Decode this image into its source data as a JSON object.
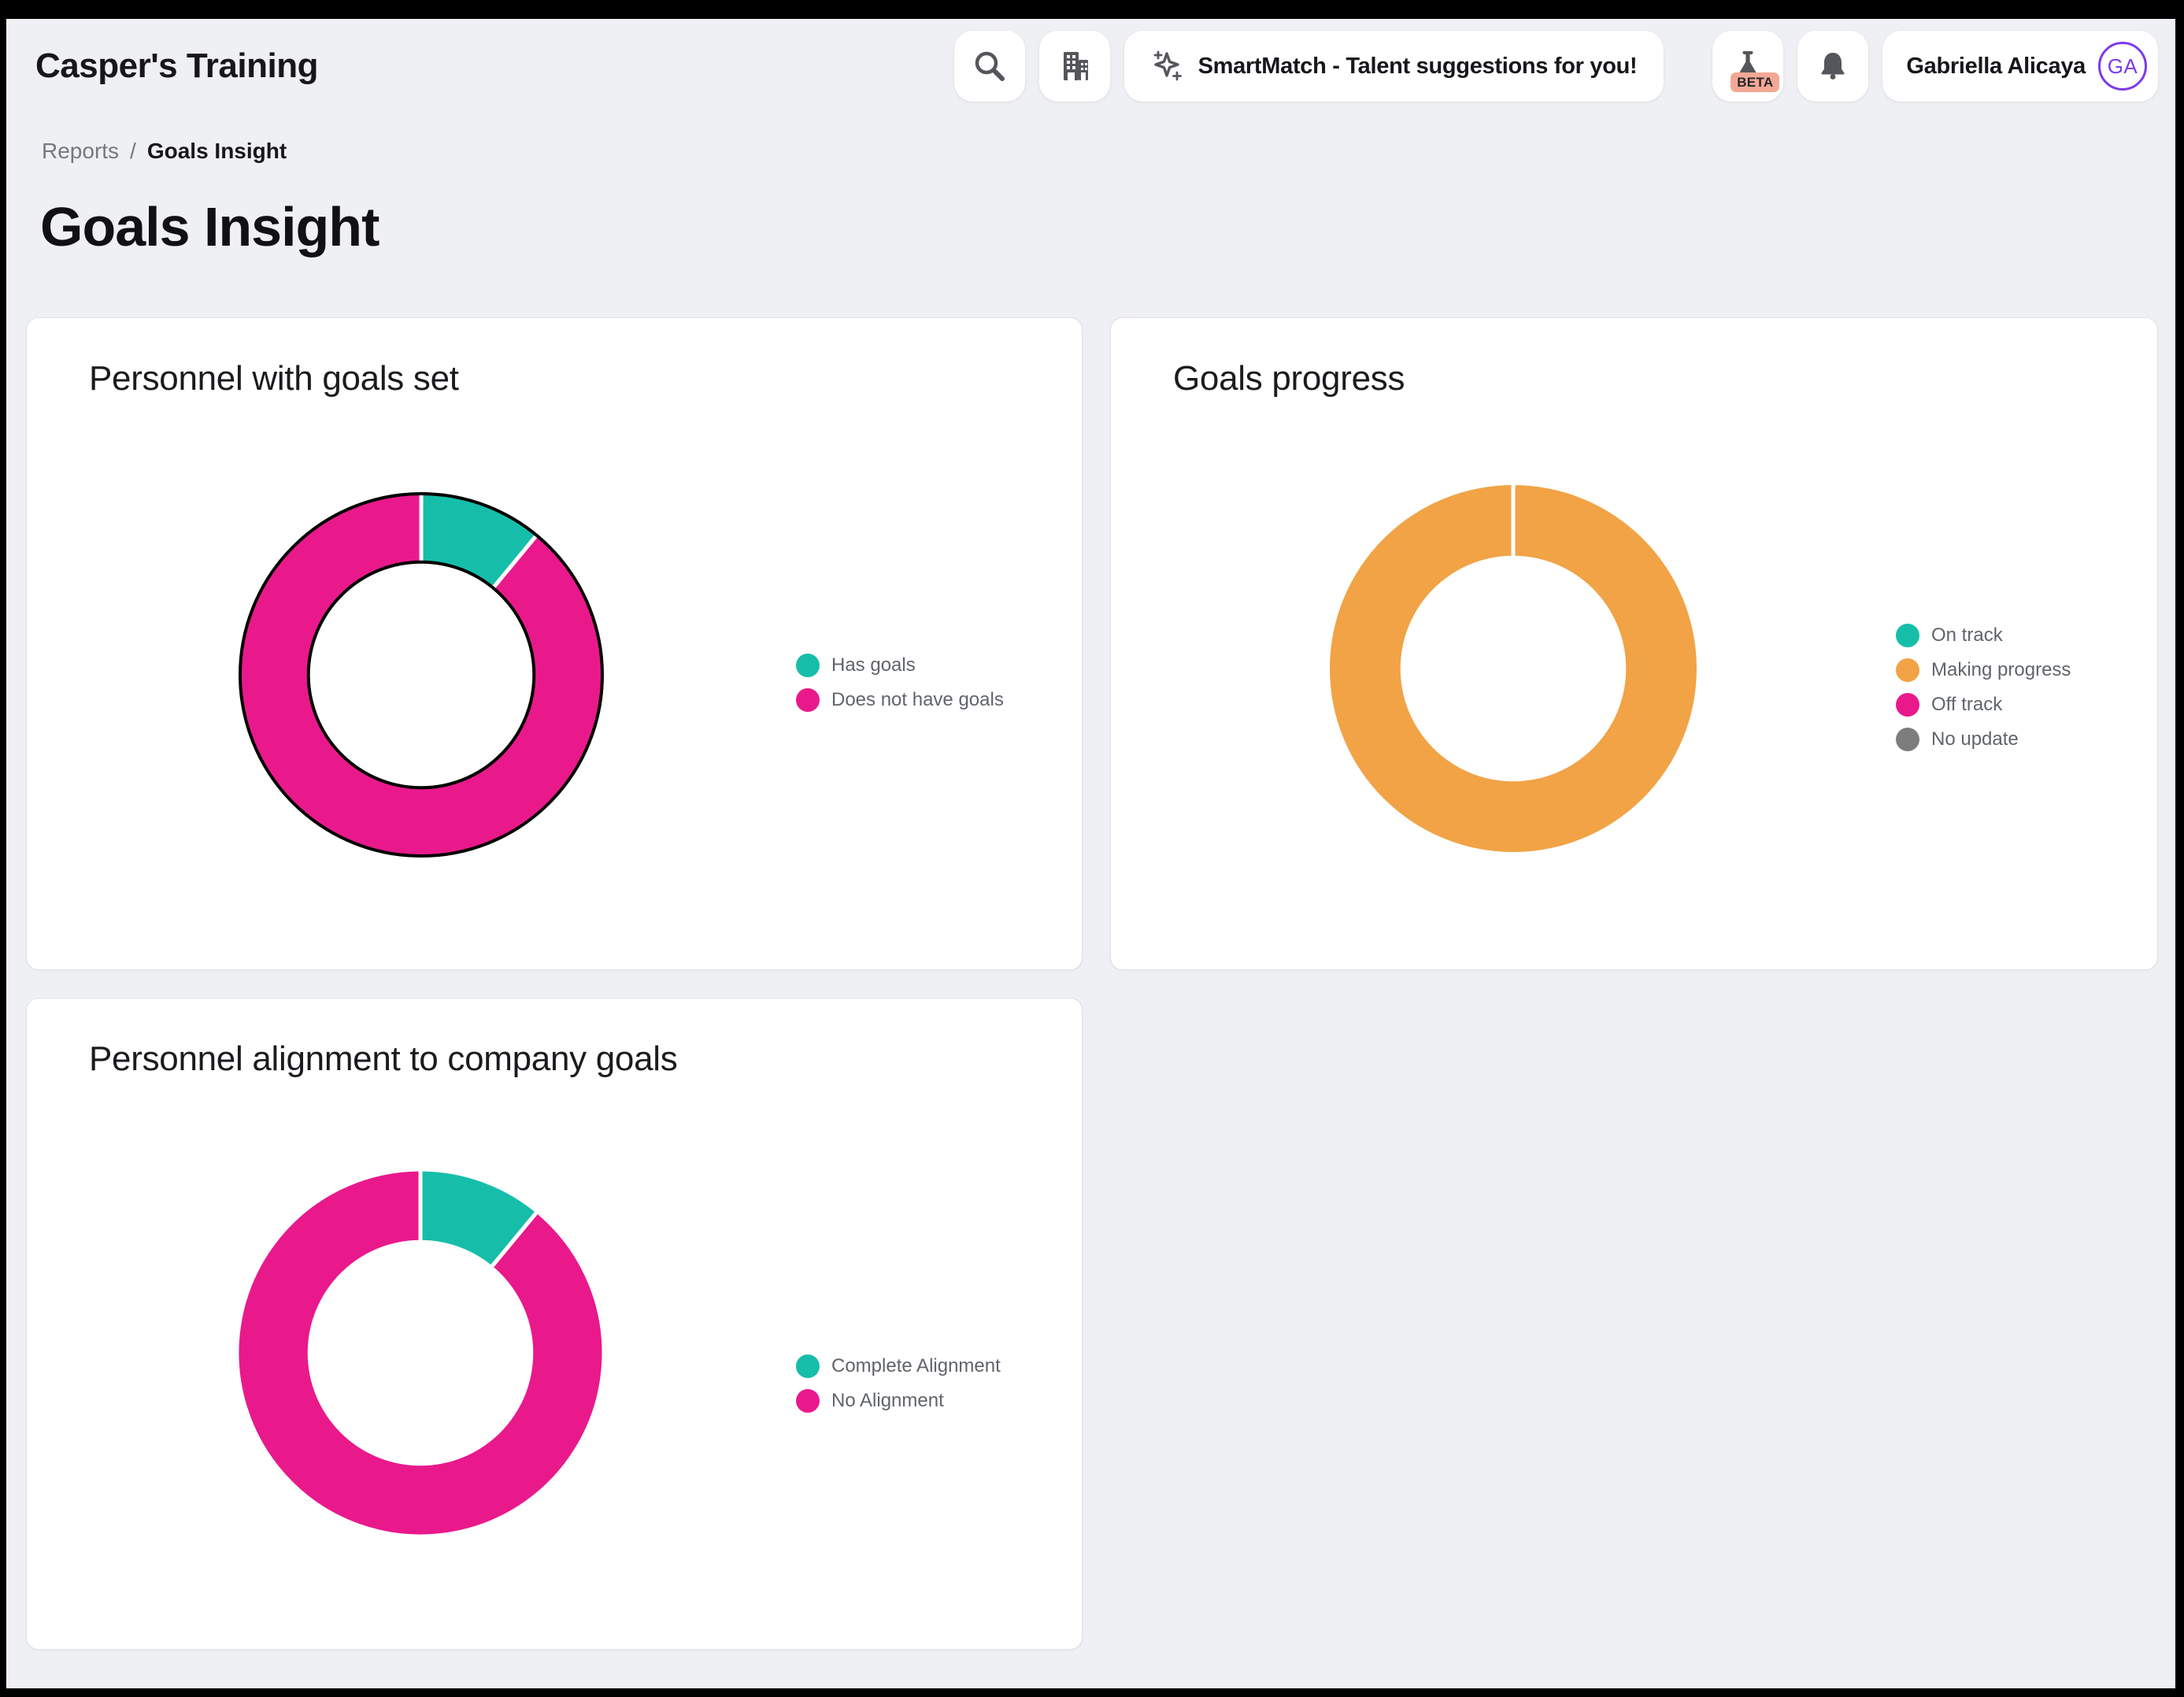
{
  "header": {
    "app_title": "Casper's Training",
    "smartmatch_label": "SmartMatch - Talent suggestions for you!",
    "beta_label": "BETA",
    "user_name": "Gabriella Alicaya",
    "user_initials": "GA"
  },
  "breadcrumb": {
    "parent": "Reports",
    "separator": "/",
    "current": "Goals Insight"
  },
  "page_title": "Goals Insight",
  "colors": {
    "teal": "#16BEA9",
    "pink": "#E9198C",
    "orange": "#F1A346",
    "gray": "#7D7D7D",
    "background": "#EFF0F3",
    "accent_purple": "#7C3BEC",
    "beta_badge_bg": "#F3A795"
  },
  "chart_data": [
    {
      "type": "pie",
      "variant": "donut",
      "title": "Personnel with goals set",
      "series": [
        {
          "name": "Has goals",
          "value": 11,
          "color": "#16BEA9"
        },
        {
          "name": "Does not have goals",
          "value": 89,
          "color": "#E9198C"
        }
      ],
      "unit": "percent_estimated",
      "outlined": true,
      "legend_position": "right",
      "hole_ratio": 0.615
    },
    {
      "type": "pie",
      "variant": "donut",
      "title": "Goals progress",
      "series": [
        {
          "name": "On track",
          "value": 0,
          "color": "#16BEA9"
        },
        {
          "name": "Making progress",
          "value": 100,
          "color": "#F1A346"
        },
        {
          "name": "Off track",
          "value": 0,
          "color": "#E9198C"
        },
        {
          "name": "No update",
          "value": 0,
          "color": "#7D7D7D"
        }
      ],
      "unit": "percent_estimated",
      "outlined": false,
      "legend_position": "right",
      "hole_ratio": 0.615
    },
    {
      "type": "pie",
      "variant": "donut",
      "title": "Personnel alignment to company goals",
      "series": [
        {
          "name": "Complete Alignment",
          "value": 11,
          "color": "#16BEA9"
        },
        {
          "name": "No Alignment",
          "value": 89,
          "color": "#E9198C"
        }
      ],
      "unit": "percent_estimated",
      "outlined": false,
      "legend_position": "right",
      "hole_ratio": 0.615
    }
  ]
}
